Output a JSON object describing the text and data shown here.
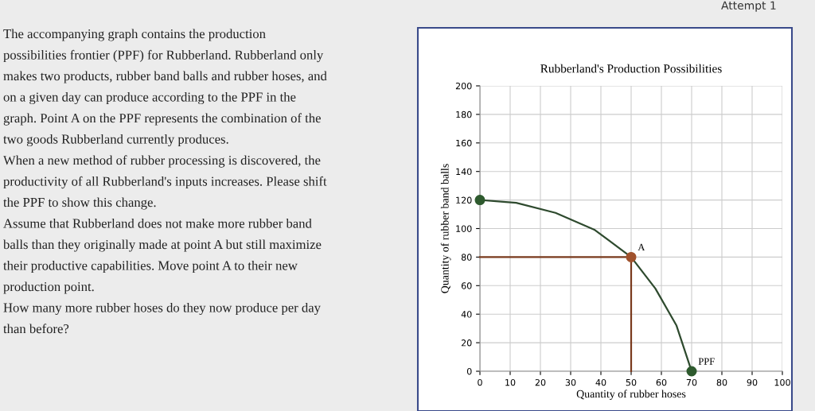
{
  "chart_data": {
    "type": "line",
    "title": "Rubberland's Production Possibilities",
    "xlabel": "Quantity of rubber hoses",
    "ylabel": "Quantity of rubber band balls",
    "xlim": [
      0,
      100
    ],
    "ylim": [
      0,
      200
    ],
    "xticks": [
      0,
      10,
      20,
      30,
      40,
      50,
      60,
      70,
      80,
      90,
      100
    ],
    "yticks": [
      0,
      20,
      40,
      60,
      80,
      100,
      120,
      140,
      160,
      180,
      200
    ],
    "grid": true,
    "legend": false,
    "series": [
      {
        "color": "#7a3b1e",
        "x": [
          0,
          50,
          50
        ],
        "values": [
          80,
          80,
          0
        ],
        "marker": "none"
      },
      {
        "color": "#2e4a2e",
        "x": [
          0,
          12,
          25,
          38,
          50,
          58,
          65,
          70
        ],
        "values": [
          120,
          118,
          111,
          99,
          80,
          58,
          32,
          0
        ],
        "marker": "none"
      },
      {
        "type": "scatter",
        "color": "#2e5a2e",
        "x": [
          0,
          70
        ],
        "values": [
          120,
          0
        ],
        "marker": "circle"
      },
      {
        "type": "scatter",
        "color": "#a0522d",
        "x": [
          50
        ],
        "values": [
          80
        ],
        "marker": "circle"
      }
    ],
    "annotations": [
      {
        "text": "A",
        "x": 50,
        "y": 80
      },
      {
        "text": "PPF",
        "x": 70,
        "y": 0
      },
      "The accompanying graph contains the production",
      "possibilities frontier (PPF) for Rubberland. Rubberland only",
      "makes two products, rubber band balls and rubber hoses, and",
      "on a given day can produce according to the PPF in the",
      "graph. Point A on the PPF represents the combination of the",
      "two goods Rubberland currently produces.",
      "When a new method of rubber processing is discovered, the",
      "productivity of all Rubberland's inputs increases. Please shift",
      "the PPF to show this change.",
      "Assume that Rubberland does not make more rubber band",
      "balls than they originally made at point A but still maximize",
      "their productive capabilities. Move point A to their new",
      "production point.",
      "How many more rubber hoses do they now produce per day",
      "than before?",
      "Attempt 1"
    ]
  }
}
